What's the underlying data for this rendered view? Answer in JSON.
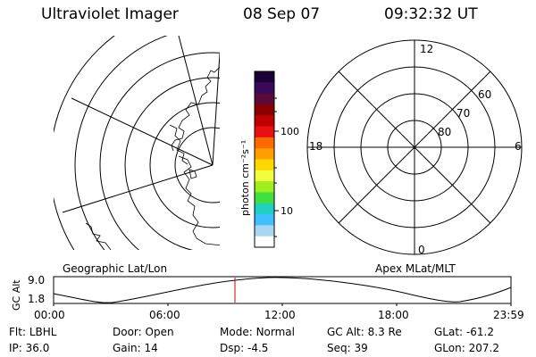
{
  "header": {
    "instrument": "Ultraviolet Imager",
    "date": "08 Sep 07",
    "time": "09:32:32 UT"
  },
  "geo_map": {
    "caption": "Geographic Lat/Lon"
  },
  "colorbar": {
    "unit_label": "photon cm⁻²s⁻¹",
    "ticks": [
      "100",
      "10"
    ],
    "colors": [
      "#1a0033",
      "#3a0a5a",
      "#5a0a3a",
      "#8a0000",
      "#c00000",
      "#e81010",
      "#ff6a00",
      "#ffa000",
      "#ffd800",
      "#f0ff40",
      "#a0f020",
      "#40e040",
      "#20d0c0",
      "#40c0ff",
      "#a8d8f0",
      "#ffffff"
    ]
  },
  "polar_plot": {
    "caption": "Apex MLat/MLT",
    "mlt_labels": {
      "top": "12",
      "left": "18",
      "right": "6",
      "bottom": "0"
    },
    "lat_labels": [
      "60",
      "70",
      "80"
    ]
  },
  "timeline": {
    "y_axis_label": "GC Alt",
    "y_ticks": [
      "9.0",
      "1.8"
    ],
    "x_ticks": [
      "00:00",
      "06:00",
      "12:00",
      "18:00",
      "23:59"
    ],
    "current_time_marker": "09:32"
  },
  "footer": {
    "row1": [
      {
        "label": "Flt:",
        "value": "LBHL"
      },
      {
        "label": "Door:",
        "value": "Open"
      },
      {
        "label": "Mode:",
        "value": "Normal"
      },
      {
        "label": "GC Alt:",
        "value": "8.3 Re"
      },
      {
        "label": "GLat:",
        "value": "-61.2"
      }
    ],
    "row2": [
      {
        "label": "IP:",
        "value": "36.0"
      },
      {
        "label": "Gain:",
        "value": "14"
      },
      {
        "label": "Dsp:",
        "value": "-4.5"
      },
      {
        "label": "Seq:",
        "value": "39"
      },
      {
        "label": "GLon:",
        "value": "207.2"
      }
    ]
  }
}
